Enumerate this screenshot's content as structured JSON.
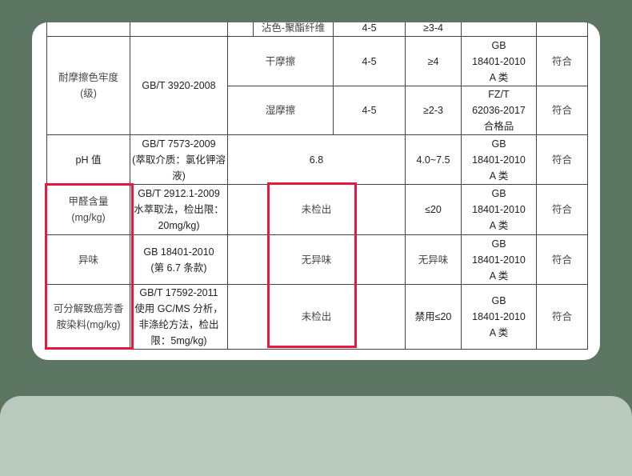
{
  "colors": {
    "background": "#5d7563",
    "card": "#ffffff",
    "highlight": "#e8173f",
    "bottom_panel": "#b9c9bd"
  },
  "table": {
    "partial_row": {
      "sub": "沾色-聚酯纤维",
      "result": "4-5",
      "requirement": "≥3-4"
    },
    "rubbing": {
      "item": "耐摩擦色牢度",
      "unit": "(级)",
      "method": "GB/T 3920-2008",
      "dry": {
        "sub": "干摩擦",
        "result": "4-5",
        "requirement": "≥4",
        "standard": [
          "GB",
          "18401-2010",
          "A 类"
        ],
        "verdict": "符合"
      },
      "wet": {
        "sub": "湿摩擦",
        "result": "4-5",
        "requirement": "≥2-3",
        "standard": [
          "FZ/T",
          "62036-2017",
          "合格品"
        ],
        "verdict": "符合"
      }
    },
    "ph": {
      "item": "pH 值",
      "method": [
        "GB/T 7573-2009",
        "(萃取介质：氯化钾溶",
        "液)"
      ],
      "result": "6.8",
      "requirement": "4.0~7.5",
      "standard": [
        "GB",
        "18401-2010",
        "A 类"
      ],
      "verdict": "符合"
    },
    "formaldehyde": {
      "item": [
        "甲醛含量",
        "(mg/kg)"
      ],
      "method": [
        "GB/T 2912.1-2009",
        "水萃取法，检出限：",
        "20mg/kg)"
      ],
      "result": "未检出",
      "requirement": "≤20",
      "standard": [
        "GB",
        "18401-2010",
        "A 类"
      ],
      "verdict": "符合"
    },
    "odor": {
      "item": "异味",
      "method": [
        "GB 18401-2010",
        "(第 6.7 条款)"
      ],
      "result": "无异味",
      "requirement": "无异味",
      "standard": [
        "GB",
        "18401-2010",
        "A 类"
      ],
      "verdict": "符合"
    },
    "amine": {
      "item": [
        "可分解致癌芳香",
        "胺染料(mg/kg)"
      ],
      "method": [
        "GB/T 17592-2011",
        "使用 GC/MS 分析，",
        "非涤纶方法，检出",
        "限：5mg/kg)"
      ],
      "result": "未检出",
      "requirement": "禁用≤20",
      "standard": [
        "GB",
        "18401-2010",
        "A 类"
      ],
      "verdict": "符合"
    }
  }
}
